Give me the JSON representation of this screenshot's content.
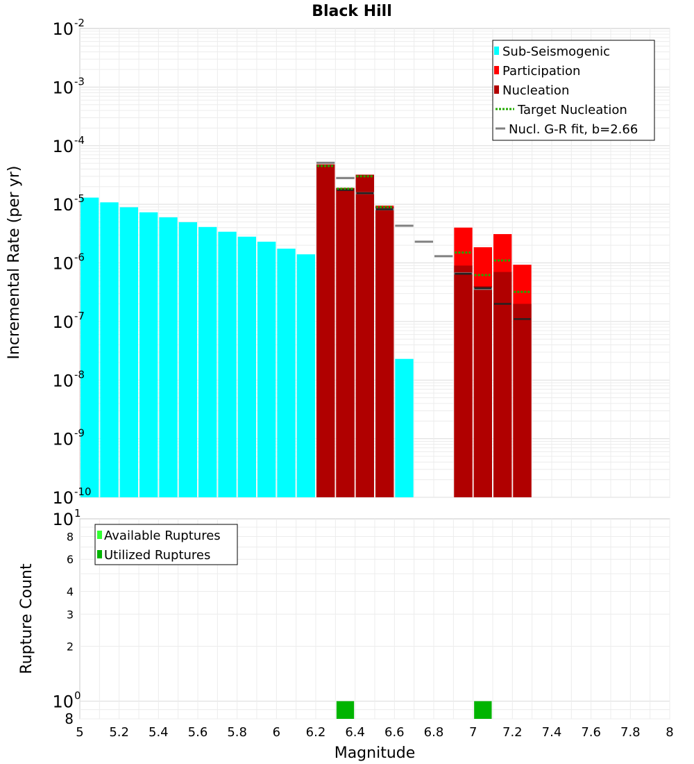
{
  "chart_data": [
    {
      "type": "bar",
      "title": "Black Hill",
      "xlabel": "Magnitude",
      "ylabel": "Incremental Rate (per yr)",
      "yscale": "log",
      "xlim": [
        5,
        8
      ],
      "ylim": [
        1e-10,
        0.01
      ],
      "y_tick_exponents": [
        -10,
        -9,
        -8,
        -7,
        -6,
        -5,
        -4,
        -3,
        -2
      ],
      "bin_width": 0.1,
      "grid": true,
      "legend_position": "top-right",
      "legend": [
        "Sub-Seismogenic",
        "Participation",
        "Nucleation",
        "Target Nucleation",
        "Nucl. G-R fit, b=2.66"
      ],
      "colors": {
        "sub_seismogenic": "#00ffff",
        "participation": "#ff0000",
        "nucleation": "#b00000",
        "target_nucleation": "#22aa00",
        "gr_fit": "#808080",
        "nucl_marker": "#222222"
      },
      "series": [
        {
          "name": "Sub-Seismogenic",
          "x": [
            5.05,
            5.15,
            5.25,
            5.35,
            5.45,
            5.55,
            5.65,
            5.75,
            5.85,
            5.95,
            6.05,
            6.15,
            6.65
          ],
          "values": [
            1.3e-05,
            1.08e-05,
            8.9e-06,
            7.3e-06,
            6e-06,
            4.95e-06,
            4.1e-06,
            3.4e-06,
            2.8e-06,
            2.3e-06,
            1.75e-06,
            1.4e-06,
            2.3e-08
          ]
        },
        {
          "name": "Participation",
          "x": [
            6.25,
            6.35,
            6.45,
            6.55,
            6.95,
            7.05,
            7.15,
            7.25
          ],
          "values": [
            4.8e-05,
            1.9e-05,
            3.2e-05,
            9.5e-06,
            4e-06,
            1.85e-06,
            3.1e-06,
            9.3e-07
          ]
        },
        {
          "name": "Nucleation",
          "x": [
            6.25,
            6.35,
            6.45,
            6.55,
            6.95,
            7.05,
            7.15,
            7.25
          ],
          "values": [
            4.8e-05,
            1.9e-05,
            3.2e-05,
            9e-06,
            9e-07,
            4e-07,
            7e-07,
            2e-07
          ]
        },
        {
          "name": "Nucleation marker",
          "x": [
            6.35,
            6.45,
            6.55,
            6.95,
            7.05,
            7.15,
            7.25
          ],
          "values": [
            1.75e-05,
            1.55e-05,
            8.2e-06,
            6.5e-07,
            3.7e-07,
            2e-07,
            1.1e-07
          ]
        },
        {
          "name": "Target Nucleation",
          "x": [
            6.25,
            6.35,
            6.45,
            6.55,
            6.95,
            7.05,
            7.15,
            7.25
          ],
          "values": [
            4.5e-05,
            1.85e-05,
            3e-05,
            9e-06,
            1.5e-06,
            6.2e-07,
            1.1e-06,
            3.2e-07
          ]
        },
        {
          "name": "Nucl. G-R fit, b=2.66",
          "x": [
            6.25,
            6.35,
            6.45,
            6.55,
            6.65,
            6.75,
            6.85,
            6.95,
            7.05
          ],
          "values": [
            5.1e-05,
            2.8e-05,
            1.55e-05,
            8.2e-06,
            4.3e-06,
            2.3e-06,
            1.3e-06,
            6.6e-07,
            3.6e-07
          ]
        }
      ]
    },
    {
      "type": "bar",
      "xlabel": "Magnitude",
      "ylabel": "Rupture Count",
      "yscale": "log",
      "xlim": [
        5,
        8
      ],
      "ylim": [
        0.8,
        10
      ],
      "x_ticks": [
        "5",
        "5.2",
        "5.4",
        "5.6",
        "5.8",
        "6",
        "6.2",
        "6.4",
        "6.6",
        "6.8",
        "7",
        "7.2",
        "7.4",
        "7.6",
        "7.8",
        "8"
      ],
      "y_minor_ticks": [
        "8",
        "6",
        "4",
        "3",
        "2",
        "8"
      ],
      "y_minor_values": [
        8,
        6,
        4,
        3,
        2,
        0.8
      ],
      "grid": true,
      "legend_position": "top-left",
      "legend": [
        "Available Ruptures",
        "Utilized Ruptures"
      ],
      "colors": {
        "available": "#33ff33",
        "utilized": "#00b400"
      },
      "series": [
        {
          "name": "Available Ruptures",
          "x": [
            6.35,
            7.05
          ],
          "values": [
            1,
            1
          ]
        },
        {
          "name": "Utilized Ruptures",
          "x": [
            6.35,
            7.05
          ],
          "values": [
            1,
            1
          ]
        }
      ]
    }
  ]
}
